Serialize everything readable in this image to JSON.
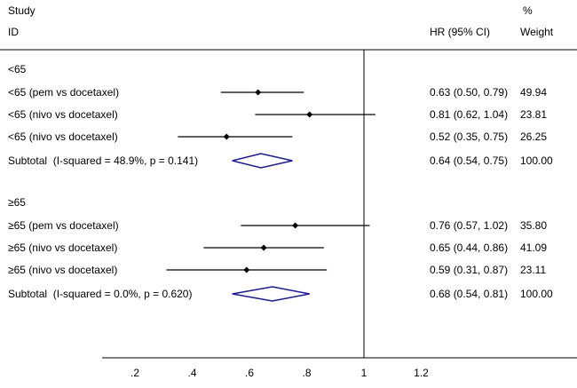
{
  "header": {
    "col_study_line1": "Study",
    "col_study_line2": "ID",
    "col_hr": "HR (95% CI)",
    "col_weight_line1": "%",
    "col_weight_line2": "Weight"
  },
  "chart_data": {
    "type": "forest",
    "title": "",
    "xlabel": "",
    "x_ticks": [
      ".2",
      ".4",
      ".6",
      ".8",
      "1",
      "1.2"
    ],
    "x_tick_values": [
      0.2,
      0.4,
      0.6,
      0.8,
      1.0,
      1.2
    ],
    "x_range": [
      0.2,
      1.2
    ],
    "null_line": 1.0,
    "colors": {
      "line": "#000000",
      "marker": "#000000",
      "diamond_outline": "#1c1c8c",
      "diamond_fill": "#ffffff"
    },
    "groups": [
      {
        "label": "<65",
        "studies": [
          {
            "label": "<65 (pem vs docetaxel)",
            "hr": 0.63,
            "lo": 0.5,
            "hi": 0.79,
            "hr_text": "0.63 (0.50, 0.79)",
            "weight": "49.94"
          },
          {
            "label": "<65 (nivo vs docetaxel)",
            "hr": 0.81,
            "lo": 0.62,
            "hi": 1.04,
            "hr_text": "0.81 (0.62, 1.04)",
            "weight": "23.81"
          },
          {
            "label": "<65 (nivo vs docetaxel)",
            "hr": 0.52,
            "lo": 0.35,
            "hi": 0.75,
            "hr_text": "0.52 (0.35, 0.75)",
            "weight": "26.25"
          }
        ],
        "subtotal": {
          "label": "Subtotal  (I-squared = 48.9%, p = 0.141)",
          "hr": 0.64,
          "lo": 0.54,
          "hi": 0.75,
          "hr_text": "0.64 (0.54, 0.75)",
          "weight": "100.00"
        }
      },
      {
        "label": "≥65",
        "studies": [
          {
            "label": "≥65 (pem vs docetaxel)",
            "hr": 0.76,
            "lo": 0.57,
            "hi": 1.02,
            "hr_text": "0.76 (0.57, 1.02)",
            "weight": "35.80"
          },
          {
            "label": "≥65 (nivo vs docetaxel)",
            "hr": 0.65,
            "lo": 0.44,
            "hi": 0.86,
            "hr_text": "0.65 (0.44, 0.86)",
            "weight": "41.09"
          },
          {
            "label": "≥65 (nivo vs docetaxel)",
            "hr": 0.59,
            "lo": 0.31,
            "hi": 0.87,
            "hr_text": "0.59 (0.31, 0.87)",
            "weight": "23.11"
          }
        ],
        "subtotal": {
          "label": "Subtotal  (I-squared = 0.0%, p = 0.620)",
          "hr": 0.68,
          "lo": 0.54,
          "hi": 0.81,
          "hr_text": "0.68 (0.54, 0.81)",
          "weight": "100.00"
        }
      }
    ]
  }
}
